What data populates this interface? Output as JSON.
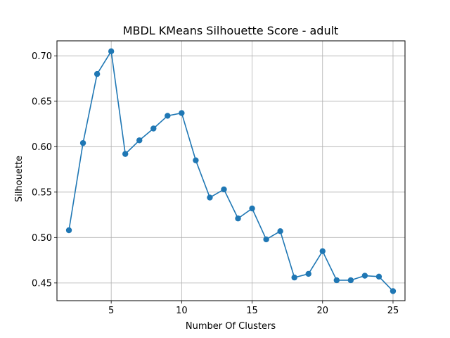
{
  "chart_data": {
    "type": "line",
    "title": "MBDL KMeans Silhouette Score - adult",
    "xlabel": "Number Of Clusters",
    "ylabel": "Silhouette",
    "xlim": [
      1.15,
      25.85
    ],
    "ylim": [
      0.4305,
      0.7165
    ],
    "xticks": [
      5,
      10,
      15,
      20,
      25
    ],
    "yticks": [
      0.45,
      0.5,
      0.55,
      0.6,
      0.65,
      0.7
    ],
    "ytick_labels": [
      "0.45",
      "0.50",
      "0.55",
      "0.60",
      "0.65",
      "0.70"
    ],
    "grid": true,
    "marker": "circle",
    "color": "#1f77b4",
    "series": [
      {
        "x": [
          2,
          3,
          4,
          5,
          6,
          7,
          8,
          9,
          10,
          11,
          12,
          13,
          14,
          15,
          16,
          17,
          18,
          19,
          20,
          21,
          22,
          23,
          24,
          25
        ],
        "y": [
          0.508,
          0.604,
          0.68,
          0.705,
          0.592,
          0.607,
          0.62,
          0.634,
          0.637,
          0.585,
          0.544,
          0.553,
          0.521,
          0.532,
          0.498,
          0.507,
          0.456,
          0.46,
          0.485,
          0.453,
          0.453,
          0.458,
          0.457,
          0.441
        ]
      }
    ]
  }
}
